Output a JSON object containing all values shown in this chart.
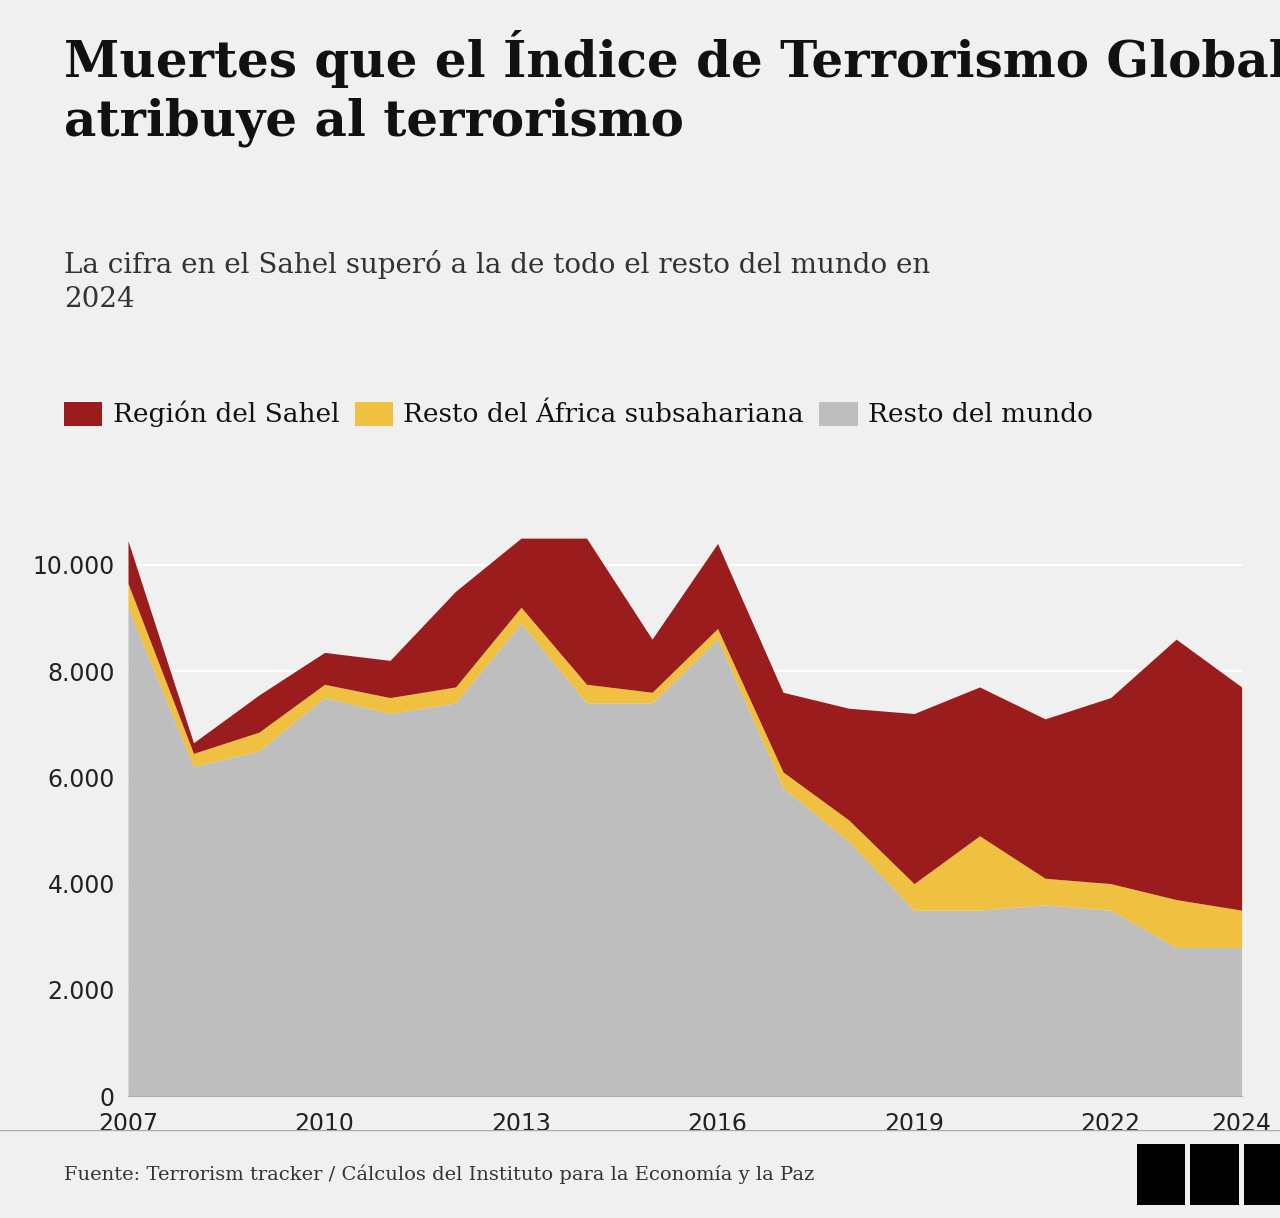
{
  "title": "Muertes que el Índice de Terrorismo Global\natribuye al terrorismo",
  "subtitle": "La cifra en el Sahel superó a la de todo el resto del mundo en\n2024",
  "years": [
    2007,
    2008,
    2009,
    2010,
    2011,
    2012,
    2013,
    2014,
    2015,
    2016,
    2017,
    2018,
    2019,
    2020,
    2021,
    2022,
    2023,
    2024
  ],
  "resto_mundo": [
    9200,
    6200,
    6500,
    7500,
    7200,
    7400,
    8900,
    7400,
    7400,
    8600,
    5800,
    4800,
    3500,
    3500,
    3600,
    3500,
    2800,
    2800
  ],
  "resto_africa": [
    450,
    250,
    350,
    250,
    300,
    300,
    300,
    350,
    200,
    200,
    300,
    400,
    500,
    1400,
    500,
    500,
    900,
    700
  ],
  "sahel": [
    800,
    200,
    700,
    600,
    700,
    1800,
    1300,
    2750,
    1000,
    1600,
    1500,
    2100,
    3200,
    2800,
    3000,
    3500,
    4900,
    4200
  ],
  "color_sahel": "#9B1C1C",
  "color_africa": "#F0C040",
  "color_mundo": "#BEBEBE",
  "background_color": "#F0F0F0",
  "footer_bg": "#E8E8E8",
  "footer_text": "Fuente: Terrorism tracker / Cálculos del Instituto para la Economía y la Paz",
  "legend_sahel": "Región del Sahel",
  "legend_africa": "Resto del África subsahariana",
  "legend_mundo": "Resto del mundo",
  "yticks": [
    0,
    2000,
    4000,
    6000,
    8000,
    10000
  ],
  "xticks": [
    2007,
    2010,
    2013,
    2016,
    2019,
    2022,
    2024
  ],
  "ylim": [
    0,
    11000
  ]
}
